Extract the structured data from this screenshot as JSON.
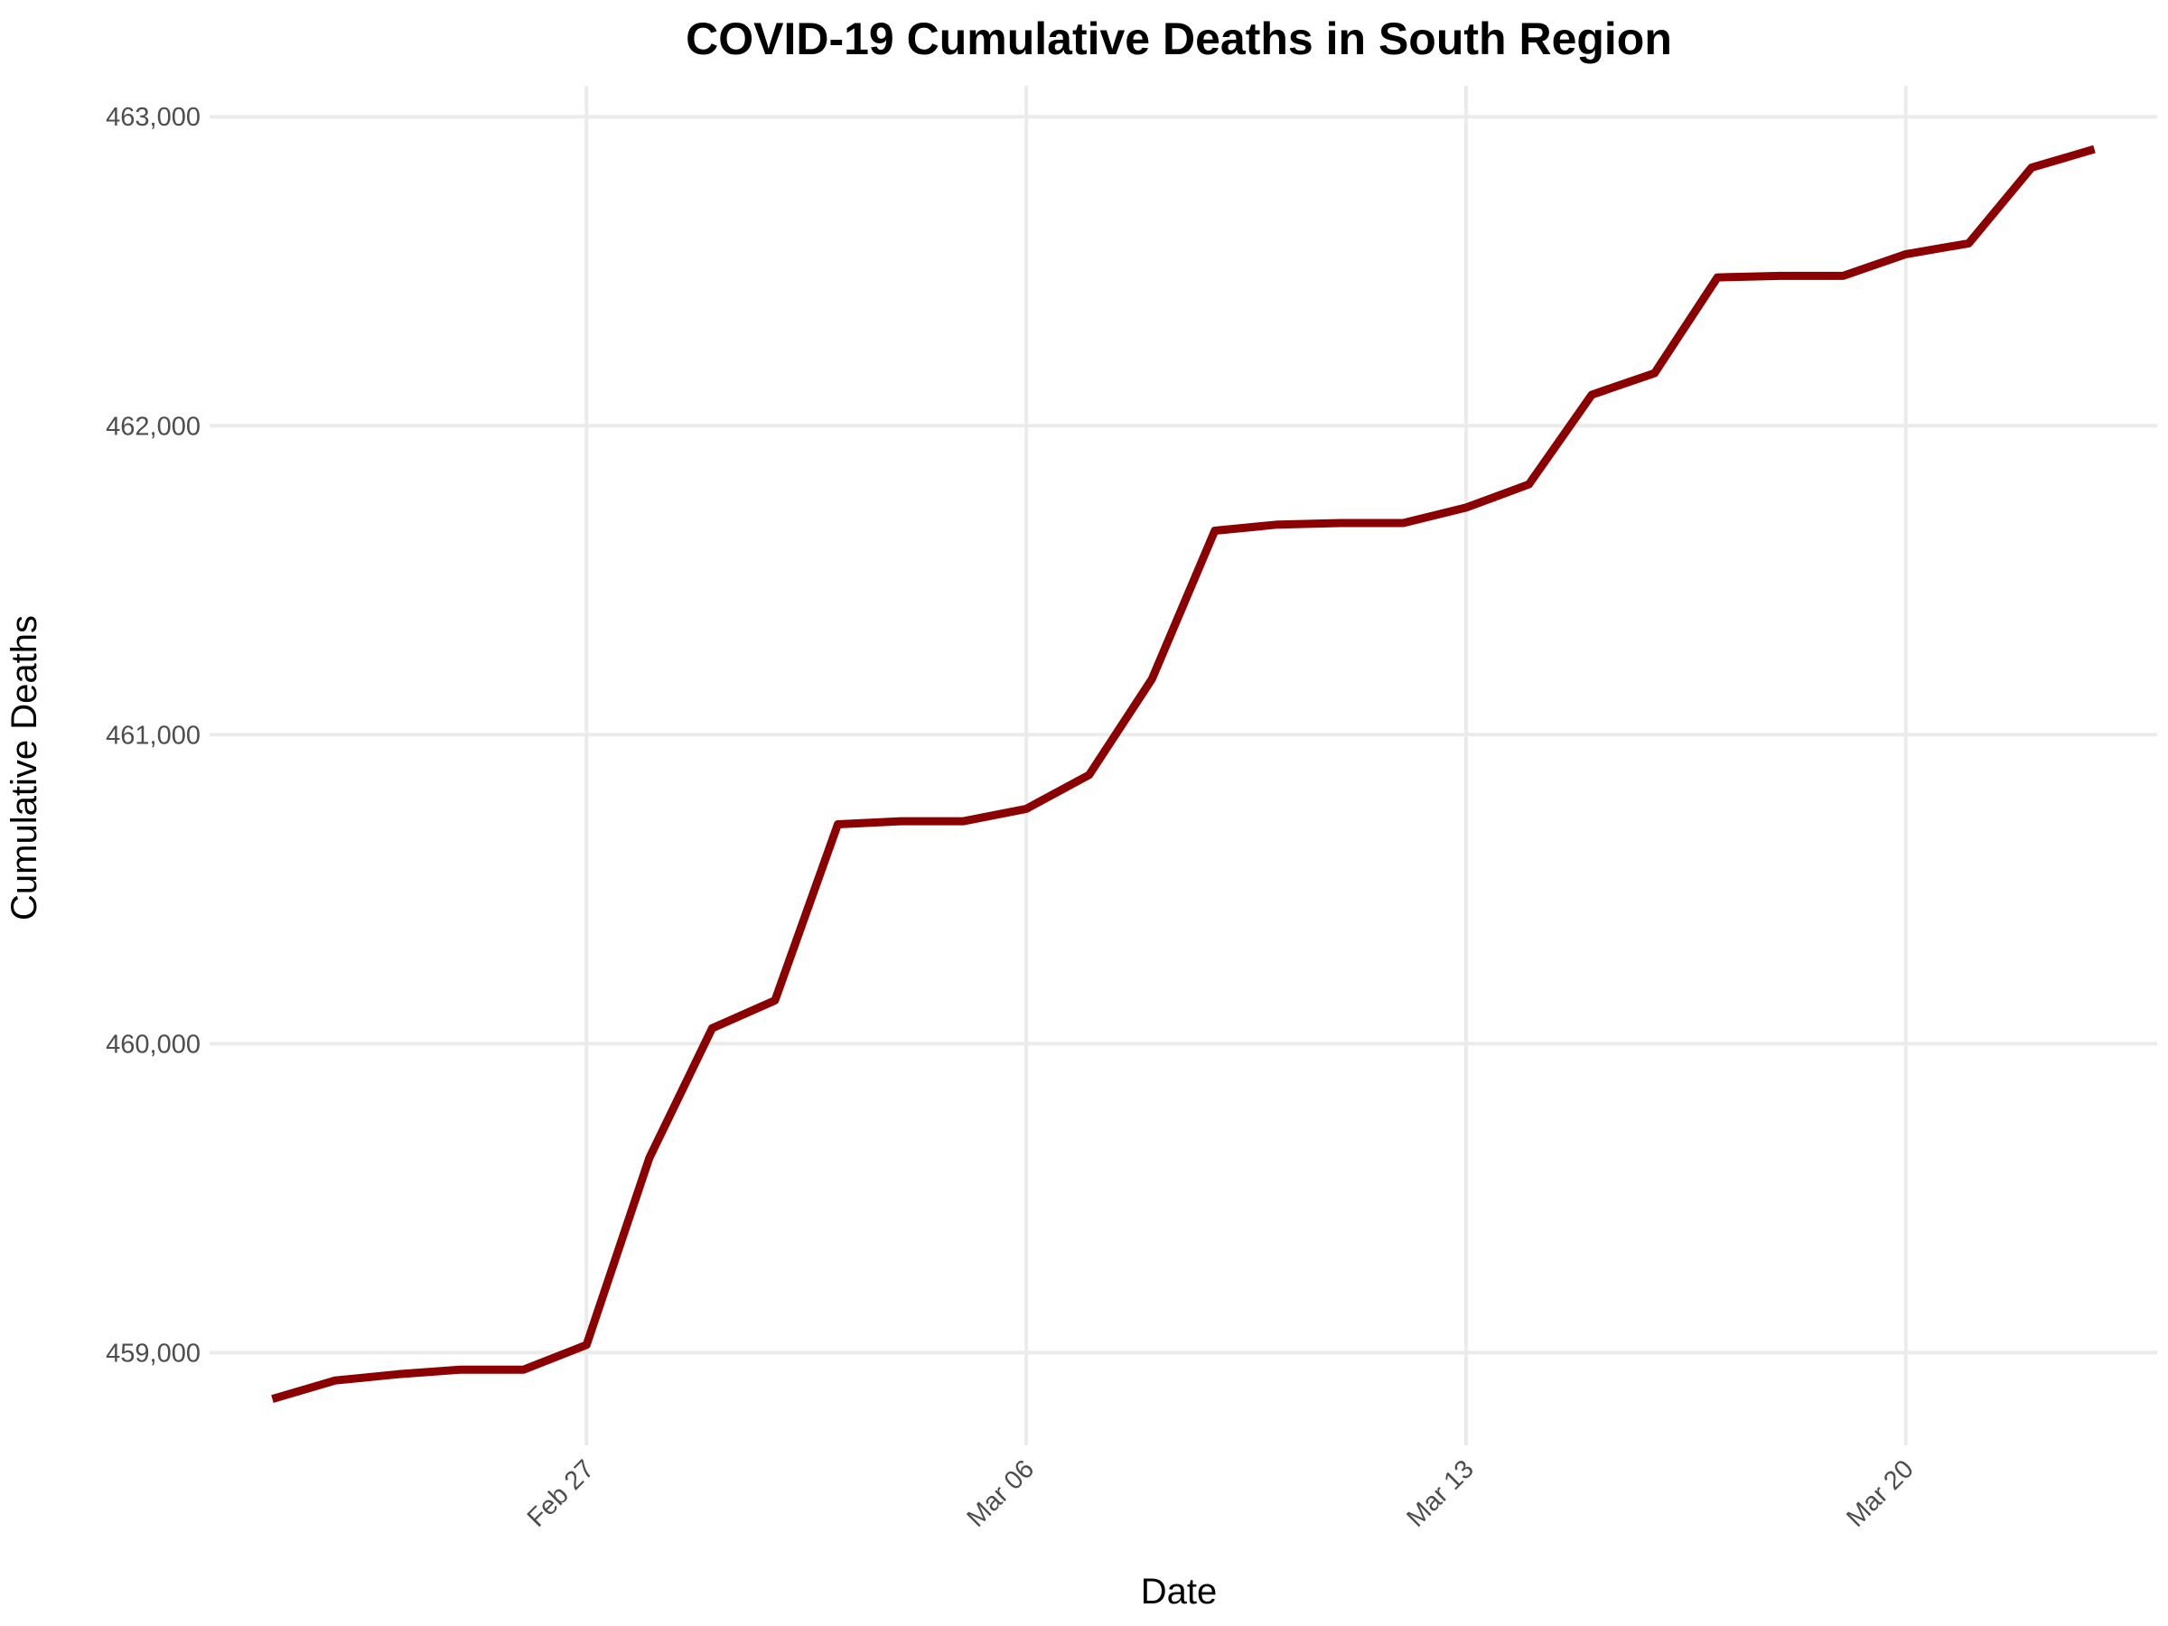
{
  "chart_data": {
    "type": "line",
    "title": "COVID-19 Cumulative Deaths in South Region",
    "xlabel": "Date",
    "ylabel": "Cumulative Deaths",
    "x": [
      "2021-02-22",
      "2021-02-23",
      "2021-02-24",
      "2021-02-25",
      "2021-02-26",
      "2021-02-27",
      "2021-02-28",
      "2021-03-01",
      "2021-03-02",
      "2021-03-03",
      "2021-03-04",
      "2021-03-05",
      "2021-03-06",
      "2021-03-07",
      "2021-03-08",
      "2021-03-09",
      "2021-03-10",
      "2021-03-11",
      "2021-03-12",
      "2021-03-13",
      "2021-03-14",
      "2021-03-15",
      "2021-03-16",
      "2021-03-17",
      "2021-03-18",
      "2021-03-19",
      "2021-03-20",
      "2021-03-21",
      "2021-03-22",
      "2021-03-23"
    ],
    "series": [
      {
        "color": "#8b0000",
        "values": [
          458850,
          458910,
          458930,
          458945,
          458945,
          459025,
          459630,
          460050,
          460140,
          460710,
          460720,
          460720,
          460760,
          460870,
          461180,
          461660,
          461680,
          461685,
          461685,
          461735,
          461810,
          462100,
          462170,
          462480,
          462485,
          462485,
          462555,
          462590,
          462835,
          462895
        ]
      }
    ],
    "xticks": [
      {
        "date": "2021-02-27",
        "label": "Feb 27"
      },
      {
        "date": "2021-03-06",
        "label": "Mar 06"
      },
      {
        "date": "2021-03-13",
        "label": "Mar 13"
      },
      {
        "date": "2021-03-20",
        "label": "Mar 20"
      }
    ],
    "yticks": [
      {
        "value": 459000,
        "label": "459,000"
      },
      {
        "value": 460000,
        "label": "460,000"
      },
      {
        "value": 461000,
        "label": "461,000"
      },
      {
        "value": 462000,
        "label": "462,000"
      },
      {
        "value": 463000,
        "label": "463,000"
      }
    ],
    "xlim": [
      "2021-02-21",
      "2021-03-24"
    ],
    "ylim": [
      458700,
      463100
    ],
    "grid": true,
    "legend": "none"
  }
}
